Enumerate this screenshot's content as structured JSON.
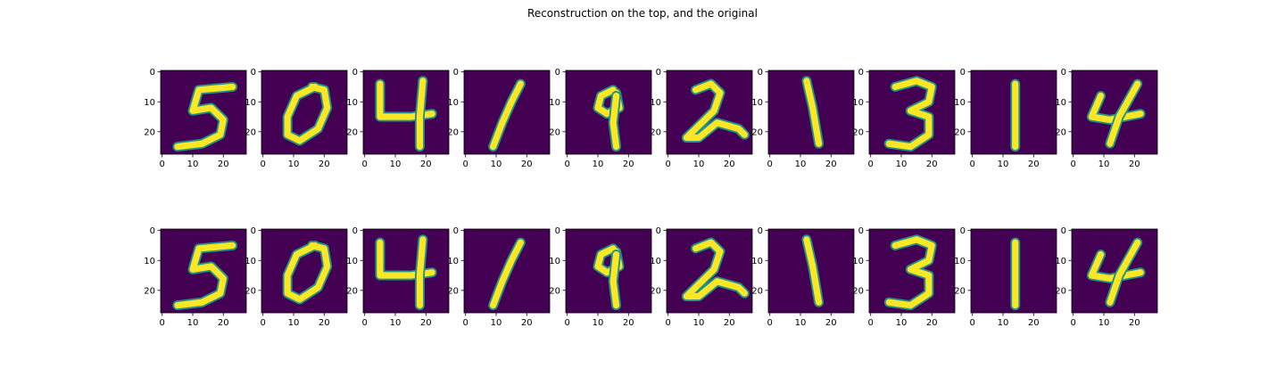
{
  "figure": {
    "title": "Reconstruction on the top, and the original"
  },
  "colors": {
    "background_pixel": "#440154",
    "foreground_pixel": "#fde725",
    "mid_pixel": "#21918c"
  },
  "chart_data": {
    "type": "heatmap",
    "title": "Reconstruction on the top, and the original",
    "rows": [
      {
        "name": "",
        "digits": [
          "5",
          "0",
          "4",
          "1",
          "9",
          "2",
          "1",
          "3",
          "1",
          "4"
        ]
      },
      {
        "name": "",
        "digits": [
          "5",
          "0",
          "4",
          "1",
          "9",
          "2",
          "1",
          "3",
          "1",
          "4"
        ]
      }
    ],
    "image_size": [
      28,
      28
    ],
    "xlim": [
      0,
      27
    ],
    "ylim": [
      27,
      0
    ],
    "xticks": [
      0,
      10,
      20
    ],
    "yticks": [
      0,
      10,
      20
    ],
    "colormap": "viridis",
    "grid": false
  }
}
